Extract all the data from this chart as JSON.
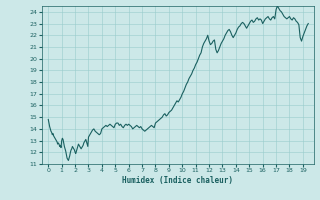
{
  "title": "",
  "xlabel": "Humidex (Indice chaleur)",
  "xlim": [
    -0.5,
    19.8
  ],
  "ylim": [
    11,
    24.5
  ],
  "xticks": [
    0,
    1,
    2,
    3,
    4,
    5,
    6,
    7,
    8,
    9,
    10,
    11,
    12,
    13,
    14,
    15,
    16,
    17,
    18,
    19
  ],
  "yticks": [
    11,
    12,
    13,
    14,
    15,
    16,
    17,
    18,
    19,
    20,
    21,
    22,
    23,
    24
  ],
  "bg_color": "#cce8e8",
  "grid_color": "#99cccc",
  "line_color": "#1a6060",
  "line_width": 0.8,
  "x": [
    0.0,
    0.05,
    0.1,
    0.15,
    0.2,
    0.25,
    0.3,
    0.35,
    0.4,
    0.45,
    0.5,
    0.55,
    0.6,
    0.65,
    0.7,
    0.75,
    0.8,
    0.85,
    0.9,
    0.95,
    1.0,
    1.05,
    1.1,
    1.15,
    1.2,
    1.25,
    1.3,
    1.35,
    1.4,
    1.45,
    1.5,
    1.55,
    1.6,
    1.65,
    1.7,
    1.75,
    1.8,
    1.85,
    1.9,
    1.95,
    2.0,
    2.05,
    2.1,
    2.15,
    2.2,
    2.25,
    2.3,
    2.35,
    2.4,
    2.45,
    2.5,
    2.55,
    2.6,
    2.65,
    2.7,
    2.75,
    2.8,
    2.85,
    2.9,
    2.95,
    3.0,
    3.1,
    3.2,
    3.3,
    3.4,
    3.5,
    3.6,
    3.7,
    3.8,
    3.9,
    4.0,
    4.1,
    4.2,
    4.3,
    4.4,
    4.5,
    4.6,
    4.7,
    4.8,
    4.9,
    5.0,
    5.1,
    5.2,
    5.3,
    5.4,
    5.5,
    5.6,
    5.7,
    5.8,
    5.9,
    6.0,
    6.1,
    6.2,
    6.3,
    6.4,
    6.5,
    6.6,
    6.7,
    6.8,
    6.9,
    7.0,
    7.1,
    7.2,
    7.3,
    7.4,
    7.5,
    7.6,
    7.7,
    7.8,
    7.9,
    8.0,
    8.1,
    8.2,
    8.3,
    8.4,
    8.5,
    8.6,
    8.7,
    8.8,
    8.9,
    9.0,
    9.1,
    9.2,
    9.3,
    9.4,
    9.5,
    9.6,
    9.7,
    9.8,
    9.9,
    10.0,
    10.1,
    10.2,
    10.3,
    10.4,
    10.5,
    10.6,
    10.7,
    10.8,
    10.9,
    11.0,
    11.1,
    11.2,
    11.3,
    11.4,
    11.5,
    11.6,
    11.7,
    11.8,
    11.9,
    12.0,
    12.1,
    12.2,
    12.3,
    12.4,
    12.5,
    12.6,
    12.7,
    12.8,
    12.9,
    13.0,
    13.1,
    13.2,
    13.3,
    13.4,
    13.5,
    13.6,
    13.7,
    13.8,
    13.9,
    14.0,
    14.1,
    14.2,
    14.3,
    14.4,
    14.5,
    14.6,
    14.7,
    14.8,
    14.9,
    15.0,
    15.1,
    15.2,
    15.3,
    15.4,
    15.5,
    15.6,
    15.7,
    15.8,
    15.9,
    16.0,
    16.1,
    16.2,
    16.3,
    16.4,
    16.5,
    16.6,
    16.7,
    16.8,
    16.9,
    17.0,
    17.1,
    17.2,
    17.3,
    17.4,
    17.5,
    17.6,
    17.7,
    17.8,
    17.9,
    18.0,
    18.1,
    18.2,
    18.3,
    18.4,
    18.5,
    18.6,
    18.7,
    18.8,
    18.9,
    19.0,
    19.1,
    19.2,
    19.3,
    19.4
  ],
  "y": [
    14.8,
    14.5,
    14.2,
    14.0,
    13.8,
    13.7,
    13.5,
    13.6,
    13.4,
    13.3,
    13.2,
    13.1,
    13.0,
    12.9,
    12.7,
    12.8,
    12.7,
    12.5,
    12.6,
    12.4,
    13.0,
    13.2,
    13.1,
    12.8,
    12.5,
    12.3,
    12.1,
    11.8,
    11.5,
    11.4,
    11.3,
    11.5,
    11.7,
    12.0,
    12.2,
    12.3,
    12.5,
    12.4,
    12.3,
    12.2,
    12.0,
    11.9,
    12.1,
    12.3,
    12.5,
    12.7,
    12.6,
    12.5,
    12.4,
    12.3,
    12.4,
    12.5,
    12.6,
    12.8,
    12.9,
    13.0,
    13.1,
    12.9,
    12.7,
    12.5,
    13.3,
    13.5,
    13.7,
    13.9,
    14.0,
    13.8,
    13.7,
    13.6,
    13.5,
    13.6,
    14.0,
    14.1,
    14.2,
    14.3,
    14.2,
    14.3,
    14.4,
    14.3,
    14.2,
    14.1,
    14.4,
    14.5,
    14.5,
    14.3,
    14.4,
    14.2,
    14.1,
    14.3,
    14.4,
    14.3,
    14.4,
    14.3,
    14.2,
    14.0,
    14.1,
    14.2,
    14.3,
    14.2,
    14.1,
    14.2,
    14.0,
    13.9,
    13.8,
    13.9,
    14.0,
    14.1,
    14.2,
    14.3,
    14.2,
    14.1,
    14.5,
    14.6,
    14.7,
    14.8,
    14.9,
    15.0,
    15.2,
    15.3,
    15.1,
    15.2,
    15.4,
    15.5,
    15.6,
    15.8,
    16.0,
    16.2,
    16.4,
    16.3,
    16.5,
    16.7,
    17.0,
    17.2,
    17.5,
    17.8,
    18.0,
    18.3,
    18.5,
    18.7,
    19.0,
    19.2,
    19.5,
    19.7,
    20.0,
    20.3,
    20.5,
    21.0,
    21.3,
    21.5,
    21.7,
    22.0,
    21.5,
    21.2,
    21.3,
    21.5,
    21.6,
    20.8,
    20.5,
    20.7,
    21.0,
    21.3,
    21.5,
    21.7,
    22.0,
    22.2,
    22.4,
    22.5,
    22.3,
    22.0,
    21.8,
    22.0,
    22.2,
    22.5,
    22.7,
    22.8,
    23.0,
    23.1,
    23.0,
    22.8,
    22.6,
    22.8,
    23.0,
    23.2,
    23.3,
    23.1,
    23.2,
    23.4,
    23.5,
    23.3,
    23.4,
    23.3,
    23.0,
    23.2,
    23.4,
    23.5,
    23.6,
    23.4,
    23.3,
    23.5,
    23.6,
    23.4,
    24.2,
    24.5,
    24.3,
    24.1,
    24.0,
    23.8,
    23.6,
    23.5,
    23.4,
    23.5,
    23.6,
    23.4,
    23.3,
    23.5,
    23.4,
    23.2,
    23.1,
    22.9,
    21.8,
    21.5,
    21.9,
    22.2,
    22.5,
    22.8,
    23.0
  ]
}
